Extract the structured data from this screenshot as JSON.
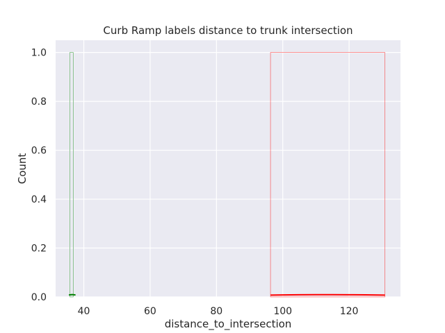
{
  "chart_data": {
    "type": "bar",
    "title": "Curb Ramp labels distance to trunk intersection",
    "xlabel": "distance_to_intersection",
    "ylabel": "Count",
    "xlim": [
      31.5,
      135.5
    ],
    "ylim": [
      0,
      1.05
    ],
    "x_ticks": [
      40,
      60,
      80,
      100,
      120
    ],
    "x_tick_labels": [
      "40",
      "60",
      "80",
      "100",
      "120"
    ],
    "y_ticks": [
      0.0,
      0.2,
      0.4,
      0.6,
      0.8,
      1.0
    ],
    "y_tick_labels": [
      "0.0",
      "0.2",
      "0.4",
      "0.6",
      "0.8",
      "1.0"
    ],
    "grid": true,
    "colors": {
      "background": "#eaeaf2",
      "grid": "#ffffff",
      "red_series": "#ff0000",
      "green_series": "#008000",
      "faint_lines": "#f2f2f6"
    },
    "series": [
      {
        "color": "red",
        "bars": [
          {
            "x0": 96.3,
            "x1": 130.8,
            "count": 1
          }
        ],
        "kde": {
          "x": [
            96.3,
            100,
            105,
            110,
            115,
            120,
            125,
            130.8
          ],
          "y": [
            0.0075,
            0.0082,
            0.0088,
            0.0091,
            0.0091,
            0.0089,
            0.0084,
            0.0076
          ]
        }
      },
      {
        "color": "green",
        "bars": [
          {
            "x0": 35.8,
            "x1": 36.8,
            "count": 1
          }
        ],
        "kde": {
          "x": [
            35.5,
            36,
            36.5,
            37,
            37.5
          ],
          "y": [
            0.008,
            0.009,
            0.0095,
            0.009,
            0.008
          ]
        }
      }
    ]
  }
}
